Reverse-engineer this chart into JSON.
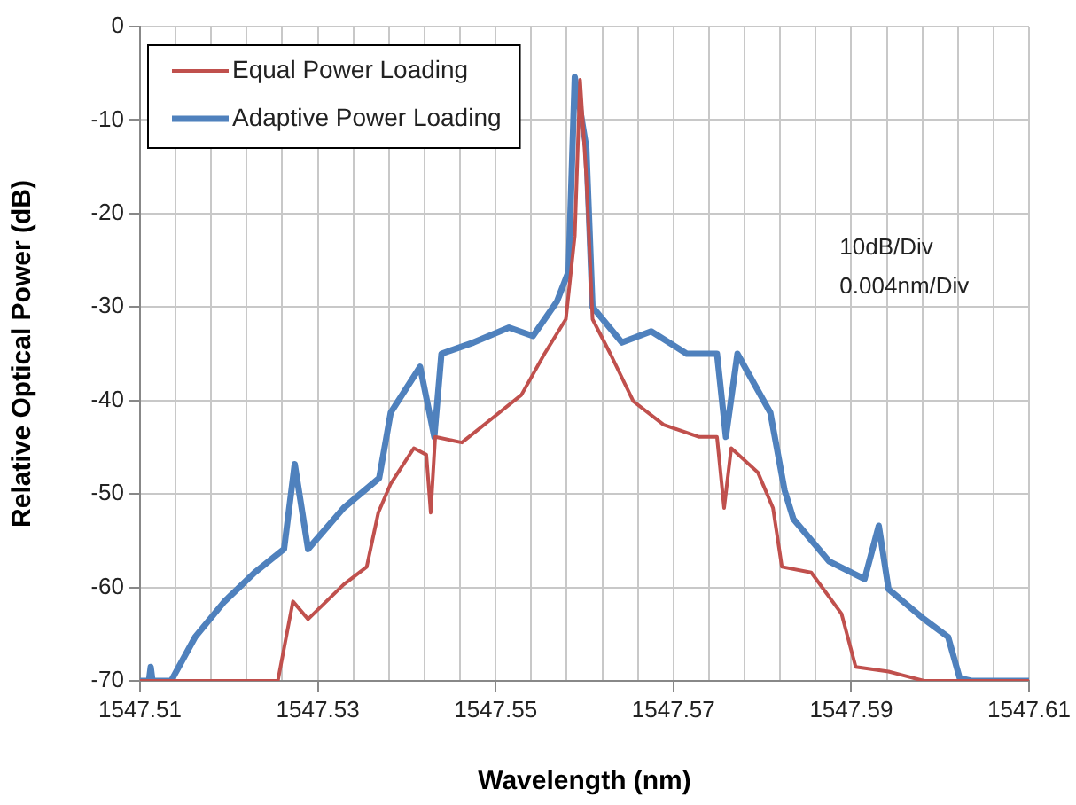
{
  "chart_data": {
    "type": "line",
    "xlabel": "Wavelength (nm)",
    "ylabel": "Relative Optical Power (dB)",
    "xlim": [
      1547.51,
      1547.61
    ],
    "ylim": [
      -70,
      0
    ],
    "xticks": [
      1547.51,
      {
        "value": 1547.514,
        "label": null
      },
      {
        "value": 1547.518,
        "label": null
      },
      {
        "value": 1547.522,
        "label": null
      },
      {
        "value": 1547.526,
        "label": null
      },
      1547.53,
      {
        "value": 1547.534,
        "label": null
      },
      {
        "value": 1547.538,
        "label": null
      },
      {
        "value": 1547.542,
        "label": null
      },
      {
        "value": 1547.546,
        "label": null
      },
      1547.55,
      {
        "value": 1547.554,
        "label": null
      },
      {
        "value": 1547.558,
        "label": null
      },
      {
        "value": 1547.562,
        "label": null
      },
      {
        "value": 1547.566,
        "label": null
      },
      1547.57,
      {
        "value": 1547.574,
        "label": null
      },
      {
        "value": 1547.578,
        "label": null
      },
      {
        "value": 1547.582,
        "label": null
      },
      {
        "value": 1547.586,
        "label": null
      },
      1547.59,
      {
        "value": 1547.594,
        "label": null
      },
      {
        "value": 1547.598,
        "label": null
      },
      {
        "value": 1547.602,
        "label": null
      },
      {
        "value": 1547.606,
        "label": null
      },
      1547.61
    ],
    "yticks": [
      0,
      -10,
      -20,
      -30,
      -40,
      -50,
      -60,
      -70
    ],
    "grid": true,
    "legend": "top left",
    "marker": "none",
    "line_style": "solid",
    "annotations": [
      "10dB/Div",
      "0.004nm/Div"
    ],
    "series": [
      {
        "name": "Equal Power Loading",
        "color": "#c0504d",
        "x": [
          1547.51,
          1547.5255,
          1547.5272,
          1547.5289,
          1547.5329,
          1547.5355,
          1547.5368,
          1547.5382,
          1547.5408,
          1547.5422,
          1547.5427,
          1547.5432,
          1547.5462,
          1547.5495,
          1547.5529,
          1547.5555,
          1547.5579,
          1547.5589,
          1547.5595,
          1547.5602,
          1547.5609,
          1547.5629,
          1547.5655,
          1547.5689,
          1547.5729,
          1547.5749,
          1547.5757,
          1547.5765,
          1547.5795,
          1547.5812,
          1547.5822,
          1547.5855,
          1547.5889,
          1547.5905,
          1547.5942,
          1547.5982,
          1547.61
        ],
        "values": [
          -70,
          -70,
          -61.5,
          -63.4,
          -59.7,
          -57.8,
          -52,
          -48.9,
          -45.1,
          -45.8,
          -52,
          -43.9,
          -44.5,
          -42,
          -39.4,
          -35,
          -31.3,
          -22.4,
          -5.7,
          -16.1,
          -31.3,
          -35,
          -40.1,
          -42.6,
          -43.9,
          -43.9,
          -51.5,
          -45.1,
          -47.7,
          -51.5,
          -57.8,
          -58.4,
          -62.8,
          -68.5,
          -69,
          -70,
          -70
        ]
      },
      {
        "name": "Adaptive Power Loading",
        "color": "#4f81bd",
        "x": [
          1547.51,
          1547.511,
          1547.5112,
          1547.5114,
          1547.5135,
          1547.5162,
          1547.5195,
          1547.5229,
          1547.5262,
          1547.5274,
          1547.5289,
          1547.5329,
          1547.5369,
          1547.5382,
          1547.5415,
          1547.5431,
          1547.5439,
          1547.5475,
          1547.5515,
          1547.5542,
          1547.5569,
          1547.5582,
          1547.5589,
          1547.5602,
          1547.5609,
          1547.5642,
          1547.5675,
          1547.5715,
          1547.5749,
          1547.5759,
          1547.5772,
          1547.5809,
          1547.5825,
          1547.5835,
          1547.5875,
          1547.5915,
          1547.5931,
          1547.5942,
          1547.5982,
          1547.6009,
          1547.6022,
          1547.6035,
          1547.61
        ],
        "values": [
          -70,
          -70,
          -68.5,
          -70,
          -70,
          -65.3,
          -61.5,
          -58.4,
          -55.9,
          -46.8,
          -55.9,
          -51.5,
          -48.3,
          -41.3,
          -36.4,
          -43.9,
          -35,
          -33.8,
          -32.2,
          -33.1,
          -29.4,
          -26.2,
          -5.4,
          -12.9,
          -30,
          -33.8,
          -32.6,
          -35,
          -35,
          -43.9,
          -35,
          -41.3,
          -49.6,
          -52.7,
          -57.2,
          -59.1,
          -53.4,
          -60.2,
          -63.4,
          -65.3,
          -69.7,
          -70,
          -70
        ]
      }
    ]
  }
}
